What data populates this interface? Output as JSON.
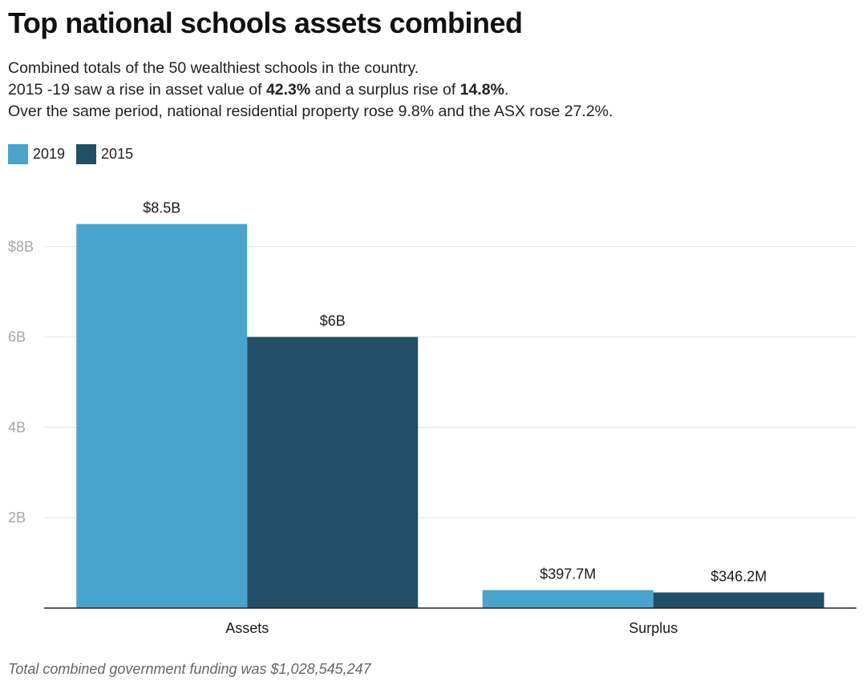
{
  "title": "Top national schools assets combined",
  "subtitle": {
    "line1": "Combined totals of the 50 wealthiest schools in the country.",
    "line2_pre": "2015 -19 saw a rise in asset value of ",
    "line2_bold1": "42.3%",
    "line2_mid": " and a surplus rise of ",
    "line2_bold2": "14.8%",
    "line2_post": ".",
    "line3": "Over the same period, national residential property rose 9.8% and the ASX rose 27.2%."
  },
  "colors": {
    "2019": "#4aa3cb",
    "2015": "#204f66",
    "grid": "#e3e3e3",
    "axis": "#222222",
    "tick": "#a6a6a6"
  },
  "chart_data": {
    "type": "bar",
    "title": "Top national schools assets combined",
    "categories": [
      "Assets",
      "Surplus"
    ],
    "series": [
      {
        "name": "2019",
        "values": [
          8.5,
          0.3977
        ],
        "labels": [
          "$8.5B",
          "$397.7M"
        ]
      },
      {
        "name": "2015",
        "values": [
          6.0,
          0.3462
        ],
        "labels": [
          "$6B",
          "$346.2M"
        ]
      }
    ],
    "yunit": "billions AUD",
    "ylim": [
      0,
      9
    ],
    "yticks": [
      {
        "value": 2,
        "label": "2B"
      },
      {
        "value": 4,
        "label": "4B"
      },
      {
        "value": 6,
        "label": "6B"
      },
      {
        "value": 8,
        "label": "$8B"
      }
    ],
    "grid": true,
    "legend_position": "top-left"
  },
  "footnote": "Total combined government funding was $1,028,545,247"
}
